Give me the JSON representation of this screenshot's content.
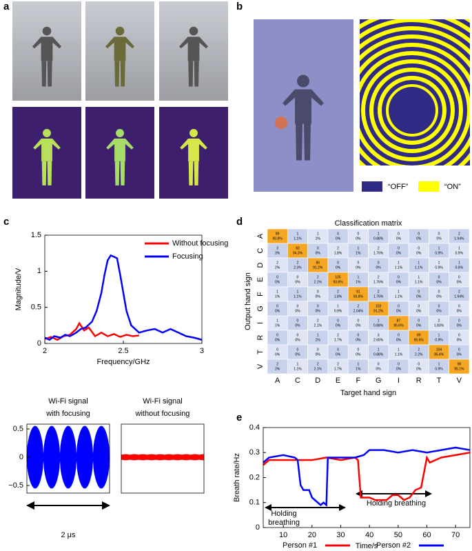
{
  "panel_labels": [
    "a",
    "b",
    "c",
    "d",
    "e"
  ],
  "panel_b": {
    "legend": [
      {
        "label": "“OFF”",
        "color": "#2f2a86"
      },
      {
        "label": "“ON”",
        "color": "#ffff00"
      }
    ]
  },
  "signals": {
    "ylim": [
      -0.63,
      0.6
    ],
    "yticks": [
      0.5,
      0,
      {
        "value": -0.5,
        "label": "−0.5"
      }
    ],
    "panels": [
      {
        "title": [
          "Wi-Fi signal",
          "with focusing"
        ],
        "color": "#0000ff"
      },
      {
        "title": [
          "Wi-Fi signal",
          "without focusing"
        ],
        "color": "#ff0000"
      }
    ],
    "scale_label": "2 μs"
  },
  "chart_data": [
    {
      "type": "line",
      "x_label": "Frequency/GHz",
      "y_label": "Magnitude/V",
      "xlim": [
        2,
        3
      ],
      "xticks": [
        2,
        2.5,
        3
      ],
      "ylim": [
        0,
        1.5
      ],
      "yticks": [
        0,
        0.5,
        1,
        1.5
      ],
      "legend": "upper right",
      "series": [
        {
          "name": "Without focusing",
          "color": "#ff0000",
          "x": [
            2,
            2.04,
            2.08,
            2.12,
            2.16,
            2.2,
            2.22,
            2.25,
            2.28,
            2.32,
            2.36,
            2.4,
            2.44,
            2.48,
            2.52,
            2.56,
            2.6
          ],
          "values": [
            0.06,
            0.09,
            0.05,
            0.1,
            0.12,
            0.2,
            0.28,
            0.18,
            0.22,
            0.1,
            0.15,
            0.1,
            0.13,
            0.09,
            0.12,
            0.1,
            0.11
          ]
        },
        {
          "name": "Focusing",
          "color": "#0000ff",
          "x": [
            2,
            2.03,
            2.06,
            2.1,
            2.13,
            2.16,
            2.2,
            2.23,
            2.26,
            2.3,
            2.33,
            2.36,
            2.38,
            2.4,
            2.42,
            2.44,
            2.46,
            2.48,
            2.5,
            2.52,
            2.55,
            2.6,
            2.65,
            2.7,
            2.75,
            2.8,
            2.85,
            2.9,
            2.95,
            3
          ],
          "values": [
            0.08,
            0.05,
            0.1,
            0.08,
            0.12,
            0.1,
            0.15,
            0.2,
            0.22,
            0.3,
            0.45,
            0.7,
            0.95,
            1.15,
            1.22,
            1.2,
            1.18,
            0.95,
            0.7,
            0.45,
            0.25,
            0.15,
            0.18,
            0.2,
            0.15,
            0.2,
            0.15,
            0.1,
            0.08,
            0.05
          ]
        }
      ]
    },
    {
      "type": "matrix",
      "title": "Classification matrix",
      "x_label": "Target hand sign",
      "y_label": "Output hand sign",
      "categories": [
        "A",
        "C",
        "D",
        "E",
        "F",
        "G",
        "I",
        "R",
        "T",
        "V"
      ],
      "values": [
        [
          89,
          1,
          1,
          0,
          0,
          1,
          0,
          0,
          0,
          2
        ],
        [
          3,
          83,
          0,
          2,
          1,
          2,
          0,
          0,
          1,
          1
        ],
        [
          2,
          2,
          86,
          0,
          0,
          0,
          1,
          1,
          1,
          1
        ],
        [
          0,
          0,
          2,
          105,
          1,
          2,
          0,
          1,
          0,
          0
        ],
        [
          1,
          1,
          0,
          2,
          91,
          2,
          1,
          0,
          0,
          2
        ],
        [
          0,
          0,
          0,
          1,
          2,
          103,
          0,
          0,
          0,
          0
        ],
        [
          1,
          0,
          2,
          0,
          0,
          1,
          87,
          0,
          2,
          0
        ],
        [
          0,
          0,
          1,
          2,
          0,
          3,
          0,
          89,
          1,
          0
        ],
        [
          0,
          0,
          0,
          0,
          0,
          1,
          1,
          2,
          104,
          0
        ],
        [
          2,
          1,
          2,
          2,
          1,
          0,
          0,
          0,
          1,
          98
        ]
      ],
      "percent_labels": [
        [
          "90.8%",
          "1.1%",
          "1%",
          "0%",
          "0%",
          "0.88%",
          "0%",
          "0%",
          "0%",
          "1.94%"
        ],
        [
          "3%",
          "94.3%",
          "0%",
          "1.8%",
          "1%",
          "1.76%",
          "0%",
          "0%",
          "0.9%",
          "0.9%"
        ],
        [
          "2%",
          "2.3%",
          "91.2%",
          "0%",
          "0%",
          "0%",
          "1.1%",
          "1.1%",
          "0.9%",
          "0.9%"
        ],
        [
          "0%",
          "0%",
          "2.1%",
          "93.8%",
          "1%",
          "1.76%",
          "0%",
          "1.1%",
          "0%",
          "0%"
        ],
        [
          "1%",
          "1.1%",
          "0%",
          "1.8%",
          "93.8%",
          "1.76%",
          "1.1%",
          "0%",
          "0%",
          "1.94%"
        ],
        [
          "0%",
          "0%",
          "0%",
          "0.9%",
          "2.04%",
          "91.2%",
          "0%",
          "0%",
          "0%",
          "0%"
        ],
        [
          "1%",
          "0%",
          "2.1%",
          "0%",
          "0%",
          "0.88%",
          "95.6%",
          "0%",
          "1.83%",
          "0%"
        ],
        [
          "0%",
          "0%",
          "1%",
          "1.7%",
          "0%",
          "2.65%",
          "0%",
          "95.6%",
          "0.9%",
          "0%"
        ],
        [
          "0%",
          "0%",
          "0%",
          "0%",
          "0%",
          "0.88%",
          "1.1%",
          "2.2%",
          "95.4%",
          "0%"
        ],
        [
          "2%",
          "1.1%",
          "2.1%",
          "1.7%",
          "1%",
          "0%",
          "0%",
          "0%",
          "0.9%",
          "95.1%"
        ]
      ],
      "colors": {
        "diagonal": "#f5a623",
        "off_diagonal": [
          "#dfe5f4",
          "#c8d2ec"
        ]
      }
    },
    {
      "type": "line",
      "x_label": "Time/s",
      "y_label": "Breath rate/Hz",
      "xlim": [
        3,
        75
      ],
      "xticks": [
        10,
        20,
        30,
        40,
        50,
        60,
        70
      ],
      "ylim": [
        0,
        0.4
      ],
      "yticks": [
        0,
        0.1,
        0.2,
        0.3,
        0.4
      ],
      "legend": "bottom",
      "annotations": [
        {
          "lines": [
            "Holding",
            "breathing"
          ]
        },
        {
          "lines": [
            "Holding breathing"
          ]
        }
      ],
      "series": [
        {
          "name": "Person #1",
          "color": "#ff0000",
          "x": [
            3,
            5,
            10,
            15,
            20,
            25,
            30,
            35,
            36,
            37,
            40,
            42,
            46,
            48,
            50,
            52,
            54,
            56,
            58,
            59,
            60,
            61,
            65,
            70,
            75
          ],
          "values": [
            0.25,
            0.27,
            0.27,
            0.27,
            0.27,
            0.28,
            0.27,
            0.28,
            0.27,
            0.12,
            0.12,
            0.11,
            0.11,
            0.13,
            0.13,
            0.11,
            0.12,
            0.15,
            0.16,
            0.22,
            0.28,
            0.26,
            0.28,
            0.29,
            0.3
          ]
        },
        {
          "name": "Person #2",
          "color": "#0000ff",
          "x": [
            3,
            5,
            10,
            14,
            15,
            16,
            17,
            19,
            20,
            22,
            23,
            24,
            25,
            25.5,
            30,
            35,
            38,
            40,
            45,
            50,
            55,
            60,
            65,
            70,
            75
          ],
          "values": [
            0.26,
            0.28,
            0.29,
            0.28,
            0.27,
            0.17,
            0.15,
            0.15,
            0.12,
            0.1,
            0.09,
            0.1,
            0.09,
            0.28,
            0.28,
            0.28,
            0.29,
            0.31,
            0.31,
            0.3,
            0.31,
            0.3,
            0.31,
            0.32,
            0.31
          ]
        }
      ]
    }
  ]
}
